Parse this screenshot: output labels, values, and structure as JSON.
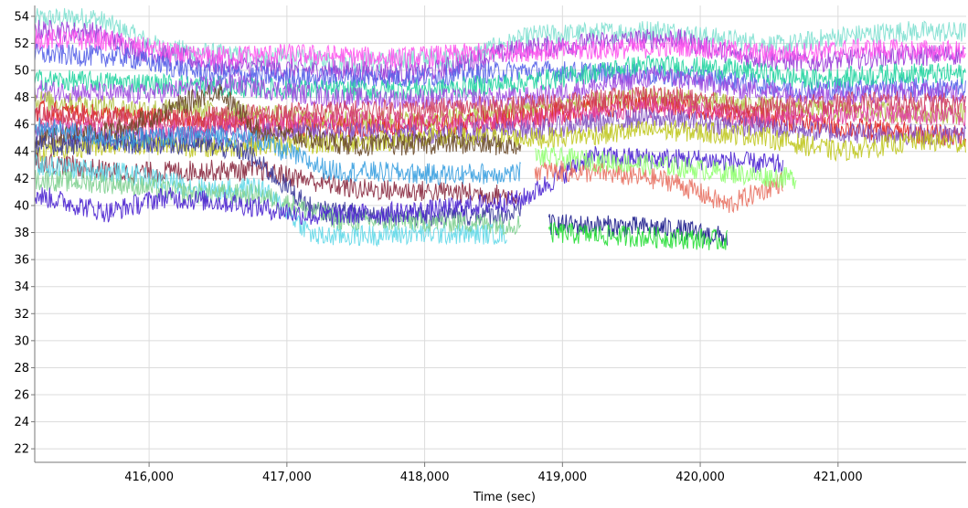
{
  "chart_data": {
    "type": "line",
    "title": "",
    "xlabel": "Time (sec)",
    "ylabel": "",
    "xlim": [
      415170,
      421930
    ],
    "ylim": [
      21,
      54.8
    ],
    "x_ticks": [
      416000,
      417000,
      418000,
      419000,
      420000,
      421000
    ],
    "x_tick_labels": [
      "416,000",
      "417,000",
      "418,000",
      "419,000",
      "420,000",
      "421,000"
    ],
    "y_ticks": [
      22,
      24,
      26,
      28,
      30,
      32,
      34,
      36,
      38,
      40,
      42,
      44,
      46,
      48,
      50,
      52,
      54
    ],
    "y_tick_labels": [
      "22",
      "24",
      "26",
      "28",
      "30",
      "32",
      "34",
      "36",
      "38",
      "40",
      "42",
      "44",
      "46",
      "48",
      "50",
      "52",
      "54"
    ],
    "grid": true,
    "legend": "none",
    "series": [
      {
        "color": "#7fe0d0",
        "values": [
          [
            415170,
            53.8
          ],
          [
            415600,
            53.9
          ],
          [
            415800,
            53.0
          ],
          [
            416100,
            51.6
          ],
          [
            416700,
            51.0
          ],
          [
            417500,
            50.6
          ],
          [
            418300,
            51.0
          ],
          [
            418800,
            52.6
          ],
          [
            419300,
            52.8
          ],
          [
            419700,
            53.0
          ],
          [
            420100,
            52.4
          ],
          [
            420600,
            51.8
          ],
          [
            421000,
            52.5
          ],
          [
            421500,
            52.9
          ],
          [
            421930,
            52.8
          ]
        ]
      },
      {
        "color": "#9a3ad8",
        "values": [
          [
            415170,
            53.0
          ],
          [
            415600,
            52.8
          ],
          [
            415900,
            51.5
          ],
          [
            416500,
            50.4
          ],
          [
            417200,
            50.0
          ],
          [
            418000,
            49.8
          ],
          [
            418700,
            51.6
          ],
          [
            419300,
            52.1
          ],
          [
            419800,
            52.4
          ],
          [
            420300,
            51.0
          ],
          [
            420800,
            50.6
          ],
          [
            421300,
            51.0
          ],
          [
            421930,
            51.2
          ]
        ]
      },
      {
        "color": "#ff55ee",
        "values": [
          [
            415170,
            52.3
          ],
          [
            415700,
            52.2
          ],
          [
            416300,
            51.0
          ],
          [
            417000,
            51.2
          ],
          [
            417800,
            50.9
          ],
          [
            418600,
            51.4
          ],
          [
            419200,
            51.5
          ],
          [
            419900,
            51.8
          ],
          [
            420500,
            51.2
          ],
          [
            421200,
            51.6
          ],
          [
            421930,
            51.4
          ]
        ]
      },
      {
        "color": "#5560e8",
        "values": [
          [
            415170,
            51.2
          ],
          [
            415800,
            51.0
          ],
          [
            416400,
            49.8
          ],
          [
            417200,
            49.4
          ],
          [
            418000,
            49.5
          ],
          [
            418700,
            50.0
          ],
          [
            419400,
            49.8
          ],
          [
            420100,
            49.4
          ],
          [
            420700,
            48.6
          ],
          [
            421400,
            48.8
          ],
          [
            421930,
            48.6
          ]
        ]
      },
      {
        "color": "#22d4a0",
        "values": [
          [
            415170,
            49.3
          ],
          [
            415800,
            49.1
          ],
          [
            416500,
            48.8
          ],
          [
            417300,
            48.5
          ],
          [
            418100,
            48.6
          ],
          [
            418800,
            49.2
          ],
          [
            419600,
            50.4
          ],
          [
            420200,
            50.1
          ],
          [
            420800,
            49.3
          ],
          [
            421500,
            49.8
          ],
          [
            421930,
            49.7
          ]
        ]
      },
      {
        "color": "#a04de0",
        "values": [
          [
            415170,
            48.5
          ],
          [
            415900,
            48.2
          ],
          [
            416600,
            49.0
          ],
          [
            417300,
            48.0
          ],
          [
            418100,
            47.9
          ],
          [
            418800,
            48.0
          ],
          [
            419700,
            49.6
          ],
          [
            420300,
            48.6
          ],
          [
            420900,
            48.2
          ],
          [
            421600,
            48.4
          ],
          [
            421930,
            48.3
          ]
        ]
      },
      {
        "color": "#b0c040",
        "values": [
          [
            415170,
            47.8
          ],
          [
            415800,
            47.2
          ],
          [
            416500,
            47.0
          ],
          [
            417200,
            46.4
          ],
          [
            418000,
            46.2
          ],
          [
            418800,
            47.2
          ],
          [
            419700,
            48.0
          ],
          [
            420300,
            47.4
          ],
          [
            421000,
            47.0
          ],
          [
            421930,
            46.8
          ]
        ]
      },
      {
        "color": "#e02020",
        "values": [
          [
            415170,
            47.0
          ],
          [
            415800,
            46.6
          ],
          [
            416500,
            46.1
          ],
          [
            417300,
            45.8
          ],
          [
            418200,
            46.0
          ],
          [
            418900,
            46.8
          ],
          [
            419600,
            47.6
          ],
          [
            420200,
            46.8
          ],
          [
            421000,
            45.8
          ],
          [
            421500,
            45.4
          ],
          [
            421930,
            45.1
          ]
        ]
      },
      {
        "color": "#e040a0",
        "values": [
          [
            415170,
            46.0
          ],
          [
            415900,
            45.6
          ],
          [
            416600,
            46.0
          ],
          [
            417400,
            46.3
          ],
          [
            418200,
            46.0
          ],
          [
            418900,
            46.5
          ],
          [
            419700,
            47.3
          ],
          [
            420400,
            46.5
          ],
          [
            421200,
            46.9
          ],
          [
            421930,
            46.6
          ]
        ]
      },
      {
        "color": "#8050c0",
        "values": [
          [
            415170,
            45.5
          ],
          [
            415800,
            45.0
          ],
          [
            416500,
            45.2
          ],
          [
            417200,
            45.4
          ],
          [
            418000,
            45.3
          ],
          [
            418800,
            45.6
          ],
          [
            419600,
            46.5
          ],
          [
            420300,
            45.9
          ],
          [
            421000,
            45.4
          ],
          [
            421930,
            45.2
          ]
        ]
      },
      {
        "color": "#c0c820",
        "values": [
          [
            415170,
            44.0
          ],
          [
            415800,
            44.6
          ],
          [
            416500,
            44.3
          ],
          [
            417300,
            44.6
          ],
          [
            418100,
            45.0
          ],
          [
            418900,
            45.0
          ],
          [
            419700,
            45.6
          ],
          [
            420400,
            45.2
          ],
          [
            421000,
            44.0
          ],
          [
            421600,
            44.8
          ],
          [
            421930,
            44.6
          ]
        ]
      },
      {
        "color": "#d04060",
        "values": [
          [
            415170,
            46.7
          ],
          [
            415900,
            46.3
          ],
          [
            416600,
            46.7
          ],
          [
            417400,
            47.0
          ],
          [
            418200,
            47.2
          ],
          [
            418900,
            47.5
          ],
          [
            419700,
            48.2
          ],
          [
            420400,
            47.2
          ],
          [
            421200,
            47.7
          ],
          [
            421930,
            47.5
          ]
        ]
      },
      {
        "color": "#6a4a2a",
        "values": [
          [
            415170,
            44.8
          ],
          [
            415800,
            45.6
          ],
          [
            416500,
            48.6
          ],
          [
            416800,
            45.5
          ],
          [
            417500,
            44.4
          ],
          [
            418200,
            44.6
          ],
          [
            418700,
            44.4
          ]
        ]
      },
      {
        "color": "#8a2a40",
        "values": [
          [
            415170,
            43.3
          ],
          [
            415800,
            42.4
          ],
          [
            416400,
            42.6
          ],
          [
            416800,
            42.6
          ],
          [
            417500,
            41.2
          ],
          [
            418200,
            41.0
          ],
          [
            418700,
            40.7
          ]
        ]
      },
      {
        "color": "#3a3a9a",
        "values": [
          [
            415170,
            44.4
          ],
          [
            415800,
            44.6
          ],
          [
            416300,
            44.6
          ],
          [
            416700,
            44.0
          ],
          [
            417200,
            39.6
          ],
          [
            418000,
            39.2
          ],
          [
            418700,
            39.4
          ]
        ]
      },
      {
        "color": "#3aa0e0",
        "values": [
          [
            415170,
            45.8
          ],
          [
            415800,
            44.9
          ],
          [
            416500,
            45.2
          ],
          [
            416800,
            44.8
          ],
          [
            417300,
            42.6
          ],
          [
            418100,
            42.3
          ],
          [
            418700,
            42.4
          ]
        ]
      },
      {
        "color": "#60d8e8",
        "values": [
          [
            415170,
            43.0
          ],
          [
            415800,
            42.4
          ],
          [
            416500,
            41.1
          ],
          [
            416800,
            41.4
          ],
          [
            417200,
            37.7
          ],
          [
            417900,
            37.9
          ],
          [
            418600,
            37.9
          ]
        ]
      },
      {
        "color": "#7fd090",
        "values": [
          [
            415170,
            41.9
          ],
          [
            415800,
            41.6
          ],
          [
            416300,
            40.9
          ],
          [
            416800,
            40.8
          ],
          [
            417400,
            38.9
          ],
          [
            418200,
            38.8
          ],
          [
            418700,
            38.6
          ]
        ]
      },
      {
        "color": "#4a22d0",
        "values": [
          [
            415170,
            40.8
          ],
          [
            415700,
            39.5
          ],
          [
            416100,
            40.6
          ],
          [
            416600,
            40.2
          ],
          [
            417200,
            39.2
          ],
          [
            418000,
            39.6
          ],
          [
            418700,
            40.4
          ],
          [
            419200,
            43.6
          ],
          [
            420000,
            43.4
          ],
          [
            420600,
            43.0
          ]
        ]
      },
      {
        "color": "#1a1a8a",
        "values": [
          [
            418900,
            38.6
          ],
          [
            419300,
            38.5
          ],
          [
            419800,
            38.3
          ],
          [
            420200,
            37.6
          ]
        ]
      },
      {
        "color": "#22dd33",
        "values": [
          [
            418900,
            38.0
          ],
          [
            419300,
            37.8
          ],
          [
            419800,
            37.6
          ],
          [
            420200,
            37.4
          ]
        ]
      },
      {
        "color": "#e87060",
        "values": [
          [
            418800,
            42.6
          ],
          [
            419300,
            42.4
          ],
          [
            419800,
            41.8
          ],
          [
            420200,
            40.0
          ],
          [
            420600,
            41.8
          ]
        ]
      },
      {
        "color": "#90ff70",
        "values": [
          [
            418800,
            43.6
          ],
          [
            419400,
            43.2
          ],
          [
            419900,
            42.8
          ],
          [
            420400,
            42.2
          ],
          [
            420700,
            42.0
          ]
        ]
      }
    ]
  }
}
